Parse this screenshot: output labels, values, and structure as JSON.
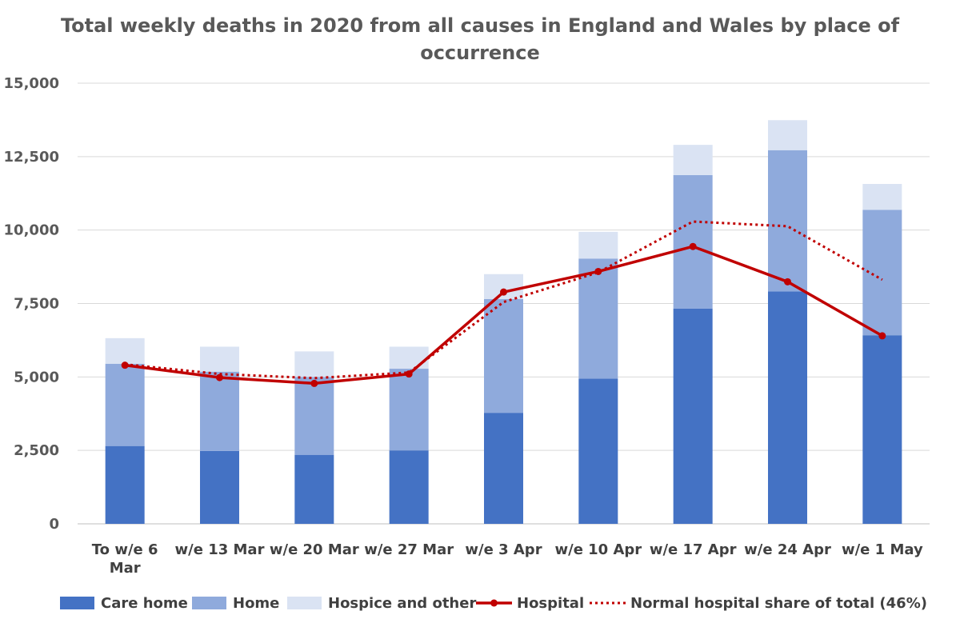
{
  "chart_data": {
    "type": "bar",
    "title_lines": [
      "Total weekly deaths in 2020 from all causes in England and Wales by place of",
      "occurrence"
    ],
    "categories": [
      [
        "To w/e 6",
        "Mar"
      ],
      [
        "w/e 13 Mar"
      ],
      [
        "w/e 20 Mar"
      ],
      [
        "w/e 27 Mar"
      ],
      [
        "w/e 3 Apr"
      ],
      [
        "w/e 10 Apr"
      ],
      [
        "w/e 17 Apr"
      ],
      [
        "w/e 24 Apr"
      ],
      [
        "w/e 1 May"
      ]
    ],
    "ylim": [
      0,
      15000
    ],
    "yticks": [
      0,
      2500,
      5000,
      7500,
      10000,
      12500,
      15000
    ],
    "ytick_labels": [
      "0",
      "2,500",
      "5,000",
      "7,500",
      "10,000",
      "12,500",
      "15,000"
    ],
    "grid": true,
    "legend_position": "bottom",
    "stacked_series": [
      {
        "name": "Care home",
        "color": "#4472C4",
        "values": [
          2650,
          2480,
          2350,
          2500,
          3780,
          4940,
          7330,
          7910,
          6420
        ]
      },
      {
        "name": "Home",
        "color": "#8FAADC",
        "values": [
          2800,
          2700,
          2650,
          2780,
          3870,
          4090,
          4540,
          4810,
          4270
        ]
      },
      {
        "name": "Hospice and other",
        "color": "#DAE3F3",
        "values": [
          870,
          850,
          870,
          750,
          850,
          910,
          1030,
          1020,
          880
        ]
      }
    ],
    "line_series": [
      {
        "name": "Hospital",
        "color": "#C00000",
        "style": "solid-markers",
        "values": [
          5400,
          4980,
          4780,
          5100,
          7890,
          8590,
          9440,
          8240,
          6400
        ]
      },
      {
        "name": "Normal hospital share of total (46%)",
        "color": "#C00000",
        "style": "dotted",
        "values": [
          5430,
          5100,
          4960,
          5150,
          7550,
          8560,
          10290,
          10130,
          8310
        ]
      }
    ]
  }
}
